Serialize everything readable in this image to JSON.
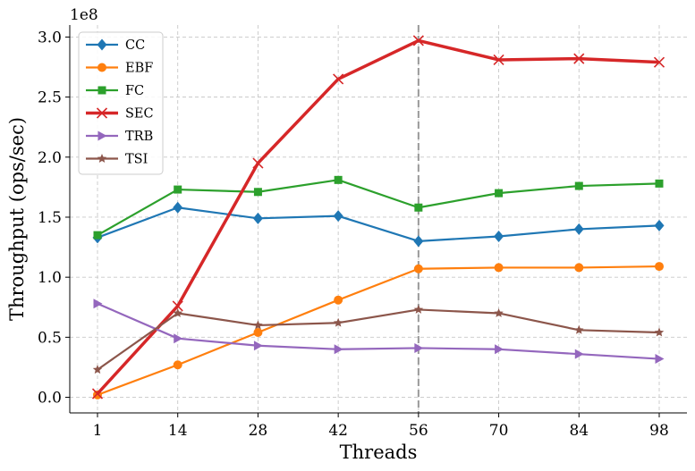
{
  "chart_data": {
    "type": "line",
    "xlabel": "Threads",
    "ylabel": "Throughput (ops/sec)",
    "y_offset_label": "1e8",
    "x": [
      "1",
      "14",
      "28",
      "42",
      "56",
      "70",
      "84",
      "98"
    ],
    "ylim": [
      -0.13,
      3.1
    ],
    "yticks": [
      "0.0",
      "0.5",
      "1.0",
      "1.5",
      "2.0",
      "2.5",
      "3.0"
    ],
    "grid": true,
    "legend_position": "upper-left",
    "vertical_marker_at": "56",
    "series": [
      {
        "name": "CC",
        "color": "#1f77b4",
        "marker": "diamond",
        "values": [
          1.33,
          1.58,
          1.49,
          1.51,
          1.3,
          1.34,
          1.4,
          1.43
        ]
      },
      {
        "name": "EBF",
        "color": "#ff7f0e",
        "marker": "circle",
        "values": [
          0.02,
          0.27,
          0.54,
          0.81,
          1.07,
          1.08,
          1.08,
          1.09
        ]
      },
      {
        "name": "FC",
        "color": "#2ca02c",
        "marker": "square",
        "values": [
          1.35,
          1.73,
          1.71,
          1.81,
          1.58,
          1.7,
          1.76,
          1.78
        ]
      },
      {
        "name": "SEC",
        "color": "#d62728",
        "marker": "x",
        "values": [
          0.03,
          0.76,
          1.95,
          2.65,
          2.97,
          2.81,
          2.82,
          2.79
        ]
      },
      {
        "name": "TRB",
        "color": "#9467bd",
        "marker": "triangle-right",
        "values": [
          0.78,
          0.49,
          0.43,
          0.4,
          0.41,
          0.4,
          0.36,
          0.32
        ]
      },
      {
        "name": "TSI",
        "color": "#8c564b",
        "marker": "star",
        "values": [
          0.23,
          0.7,
          0.6,
          0.62,
          0.73,
          0.7,
          0.56,
          0.54
        ]
      }
    ]
  }
}
